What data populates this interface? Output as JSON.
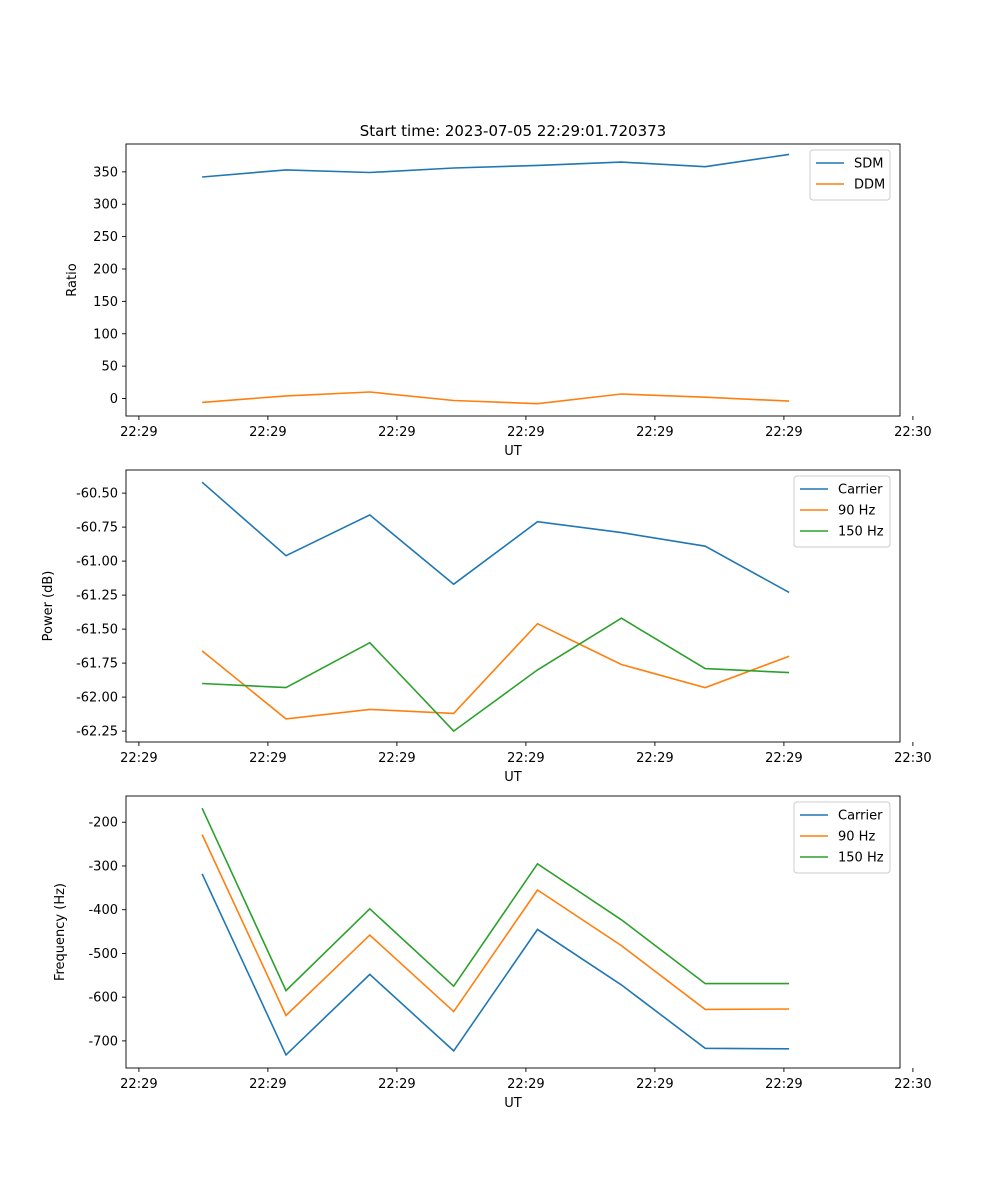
{
  "figure_title": "Start time: 2023-07-05 22:29:01.720373",
  "chart_data": [
    {
      "type": "line",
      "title": "Start time: 2023-07-05 22:29:01.720373",
      "xlabel": "UT",
      "ylabel": "Ratio",
      "xlim": [
        0,
        60
      ],
      "x_ticks": [
        1,
        11,
        21,
        31,
        41,
        51,
        61
      ],
      "x_tick_labels": [
        "22:29",
        "22:29",
        "22:29",
        "22:29",
        "22:29",
        "22:29",
        "22:30"
      ],
      "ylim": [
        -27,
        393
      ],
      "y_ticks": [
        0,
        50,
        100,
        150,
        200,
        250,
        300,
        350
      ],
      "y_tick_labels": [
        "0",
        "50",
        "100",
        "150",
        "200",
        "250",
        "300",
        "350"
      ],
      "x": [
        5.9,
        12.4,
        18.9,
        25.4,
        31.9,
        38.4,
        44.9,
        51.4
      ],
      "legend_position": "top-right",
      "series": [
        {
          "name": "SDM",
          "color": "#1f77b4",
          "values": [
            342,
            353,
            349,
            356,
            360,
            365,
            358,
            377
          ]
        },
        {
          "name": "DDM",
          "color": "#ff7f0e",
          "values": [
            -6,
            4,
            10,
            -3,
            -8,
            7,
            2,
            -4
          ]
        }
      ]
    },
    {
      "type": "line",
      "title": "",
      "xlabel": "UT",
      "ylabel": "Power (dB)",
      "xlim": [
        0,
        60
      ],
      "x_ticks": [
        1,
        11,
        21,
        31,
        41,
        51,
        61
      ],
      "x_tick_labels": [
        "22:29",
        "22:29",
        "22:29",
        "22:29",
        "22:29",
        "22:29",
        "22:30"
      ],
      "ylim": [
        -62.33,
        -60.33
      ],
      "y_ticks": [
        -60.5,
        -60.75,
        -61.0,
        -61.25,
        -61.5,
        -61.75,
        -62.0,
        -62.25
      ],
      "y_tick_labels": [
        "-60.50",
        "-60.75",
        "-61.00",
        "-61.25",
        "-61.50",
        "-61.75",
        "-62.00",
        "-62.25"
      ],
      "x": [
        5.9,
        12.4,
        18.9,
        25.4,
        31.9,
        38.4,
        44.9,
        51.4
      ],
      "legend_position": "top-right",
      "series": [
        {
          "name": "Carrier",
          "color": "#1f77b4",
          "values": [
            -60.42,
            -60.96,
            -60.66,
            -61.17,
            -60.71,
            -60.79,
            -60.89,
            -61.23
          ]
        },
        {
          "name": "90 Hz",
          "color": "#ff7f0e",
          "values": [
            -61.66,
            -62.16,
            -62.09,
            -62.12,
            -61.46,
            -61.76,
            -61.93,
            -61.7
          ]
        },
        {
          "name": "150 Hz",
          "color": "#2ca02c",
          "values": [
            -61.9,
            -61.93,
            -61.6,
            -62.25,
            -61.8,
            -61.42,
            -61.79,
            -61.82
          ]
        }
      ]
    },
    {
      "type": "line",
      "title": "",
      "xlabel": "UT",
      "ylabel": "Frequency (Hz)",
      "xlim": [
        0,
        60
      ],
      "x_ticks": [
        1,
        11,
        21,
        31,
        41,
        51,
        61
      ],
      "x_tick_labels": [
        "22:29",
        "22:29",
        "22:29",
        "22:29",
        "22:29",
        "22:29",
        "22:30"
      ],
      "ylim": [
        -762,
        -140
      ],
      "y_ticks": [
        -200,
        -300,
        -400,
        -500,
        -600,
        -700
      ],
      "y_tick_labels": [
        "-200",
        "-300",
        "-400",
        "-500",
        "-600",
        "-700"
      ],
      "x": [
        5.9,
        12.4,
        18.9,
        25.4,
        31.9,
        38.4,
        44.9,
        51.4
      ],
      "legend_position": "top-right",
      "series": [
        {
          "name": "Carrier",
          "color": "#1f77b4",
          "values": [
            -318,
            -732,
            -548,
            -723,
            -445,
            -572,
            -717,
            -718
          ]
        },
        {
          "name": "90 Hz",
          "color": "#ff7f0e",
          "values": [
            -228,
            -642,
            -458,
            -633,
            -355,
            -482,
            -628,
            -627
          ]
        },
        {
          "name": "150 Hz",
          "color": "#2ca02c",
          "values": [
            -168,
            -585,
            -398,
            -575,
            -295,
            -423,
            -569,
            -569
          ]
        }
      ]
    }
  ]
}
